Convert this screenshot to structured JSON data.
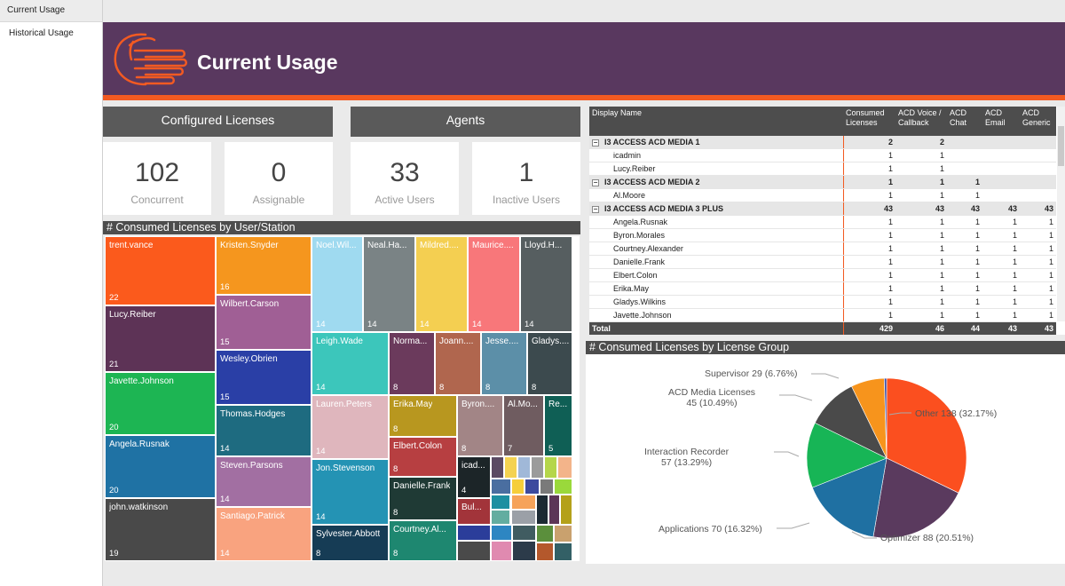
{
  "nav": {
    "items": [
      {
        "label": "Current Usage"
      },
      {
        "label": "Historical Usage"
      }
    ]
  },
  "header": {
    "title": "Current Usage"
  },
  "cards": {
    "configured_title": "Configured Licenses",
    "agents_title": "Agents",
    "kpis": [
      {
        "value": "102",
        "label": "Concurrent"
      },
      {
        "value": "0",
        "label": "Assignable"
      },
      {
        "value": "33",
        "label": "Active Users"
      },
      {
        "value": "1",
        "label": "Inactive Users"
      }
    ]
  },
  "treemap": {
    "title": "# Consumed Licenses by User/Station",
    "cells": [
      {
        "name": "trent.vance",
        "count": "22",
        "color": "#fb5a1c"
      },
      {
        "name": "Lucy.Reiber",
        "count": "21",
        "color": "#5d3356"
      },
      {
        "name": "Javette.Johnson",
        "count": "20",
        "color": "#1db553"
      },
      {
        "name": "Angela.Rusnak",
        "count": "20",
        "color": "#1f72a4"
      },
      {
        "name": "john.watkinson",
        "count": "19",
        "color": "#494949"
      },
      {
        "name": "Kristen.Snyder",
        "count": "16",
        "color": "#f5961e"
      },
      {
        "name": "Wilbert.Carson",
        "count": "15",
        "color": "#a05f95"
      },
      {
        "name": "Wesley.Obrien",
        "count": "15",
        "color": "#2a3fa6"
      },
      {
        "name": "Thomas.Hodges",
        "count": "14",
        "color": "#1e6b80"
      },
      {
        "name": "Steven.Parsons",
        "count": "14",
        "color": "#a26fa2"
      },
      {
        "name": "Santiago.Patrick",
        "count": "14",
        "color": "#f9a37f"
      },
      {
        "name": "Noel.Wil...",
        "count": "14",
        "color": "#9fdaf0"
      },
      {
        "name": "Neal.Ha...",
        "count": "14",
        "color": "#7a8385"
      },
      {
        "name": "Mildred....",
        "count": "14",
        "color": "#f4cf51"
      },
      {
        "name": "Maurice....",
        "count": "14",
        "color": "#f8777a"
      },
      {
        "name": "Lloyd.H...",
        "count": "14",
        "color": "#565e60"
      },
      {
        "name": "Leigh.Wade",
        "count": "14",
        "color": "#3cc6bb"
      },
      {
        "name": "Lauren.Peters",
        "count": "14",
        "color": "#dfb6bd"
      },
      {
        "name": "Jon.Stevenson",
        "count": "14",
        "color": "#2493b4"
      },
      {
        "name": "Sylvester.Abbott",
        "count": "8",
        "color": "#163c55"
      },
      {
        "name": "Norma...",
        "count": "8",
        "color": "#6b3a5c"
      },
      {
        "name": "Joann....",
        "count": "8",
        "color": "#b0664e"
      },
      {
        "name": "Jesse....",
        "count": "8",
        "color": "#5c8fa8"
      },
      {
        "name": "Gladys....",
        "count": "8",
        "color": "#3c4a4e"
      },
      {
        "name": "Erika.May",
        "count": "8",
        "color": "#b8971f"
      },
      {
        "name": "Byron....",
        "count": "8",
        "color": "#a28586"
      },
      {
        "name": "Al.Mo...",
        "count": "7",
        "color": "#6f5c60"
      },
      {
        "name": "Re...",
        "count": "5",
        "color": "#0f5f55"
      },
      {
        "name": "Elbert.Colon",
        "count": "8",
        "color": "#b73f41"
      },
      {
        "name": "Danielle.Frank",
        "count": "8",
        "color": "#1f3a35"
      },
      {
        "name": "Courtney.Al...",
        "count": "8",
        "color": "#1e8770"
      },
      {
        "name": "icad...",
        "count": "4",
        "color": "#1c2528"
      },
      {
        "name": "Bul...",
        "count": "",
        "color": "#a2343a"
      }
    ]
  },
  "table": {
    "columns": [
      "Display Name",
      "Consumed Licenses",
      "ACD Voice / Callback",
      "ACD Chat",
      "ACD Email",
      "ACD Generic"
    ],
    "rows": [
      {
        "type": "group",
        "name": "I3 ACCESS ACD MEDIA 1",
        "consumed": "2",
        "voice": "2",
        "chat": "",
        "email": "",
        "generic": ""
      },
      {
        "type": "item",
        "name": "icadmin",
        "consumed": "1",
        "voice": "1",
        "chat": "",
        "email": "",
        "generic": ""
      },
      {
        "type": "item",
        "name": "Lucy.Reiber",
        "consumed": "1",
        "voice": "1",
        "chat": "",
        "email": "",
        "generic": ""
      },
      {
        "type": "group",
        "name": "I3 ACCESS ACD MEDIA 2",
        "consumed": "1",
        "voice": "1",
        "chat": "1",
        "email": "",
        "generic": ""
      },
      {
        "type": "item",
        "name": "Al.Moore",
        "consumed": "1",
        "voice": "1",
        "chat": "1",
        "email": "",
        "generic": ""
      },
      {
        "type": "group",
        "name": "I3 ACCESS ACD MEDIA 3 PLUS",
        "consumed": "43",
        "voice": "43",
        "chat": "43",
        "email": "43",
        "generic": "43"
      },
      {
        "type": "item",
        "name": "Angela.Rusnak",
        "consumed": "1",
        "voice": "1",
        "chat": "1",
        "email": "1",
        "generic": "1"
      },
      {
        "type": "item",
        "name": "Byron.Morales",
        "consumed": "1",
        "voice": "1",
        "chat": "1",
        "email": "1",
        "generic": "1"
      },
      {
        "type": "item",
        "name": "Courtney.Alexander",
        "consumed": "1",
        "voice": "1",
        "chat": "1",
        "email": "1",
        "generic": "1"
      },
      {
        "type": "item",
        "name": "Danielle.Frank",
        "consumed": "1",
        "voice": "1",
        "chat": "1",
        "email": "1",
        "generic": "1"
      },
      {
        "type": "item",
        "name": "Elbert.Colon",
        "consumed": "1",
        "voice": "1",
        "chat": "1",
        "email": "1",
        "generic": "1"
      },
      {
        "type": "item",
        "name": "Erika.May",
        "consumed": "1",
        "voice": "1",
        "chat": "1",
        "email": "1",
        "generic": "1"
      },
      {
        "type": "item",
        "name": "Gladys.Wilkins",
        "consumed": "1",
        "voice": "1",
        "chat": "1",
        "email": "1",
        "generic": "1"
      },
      {
        "type": "item",
        "name": "Javette.Johnson",
        "consumed": "1",
        "voice": "1",
        "chat": "1",
        "email": "1",
        "generic": "1"
      }
    ],
    "total": {
      "name": "Total",
      "consumed": "429",
      "voice": "46",
      "chat": "44",
      "email": "43",
      "generic": "43"
    },
    "group_toggle": "−"
  },
  "pie": {
    "title": "# Consumed Licenses by License Group",
    "slices": [
      {
        "label": "Other 138 (32.17%)",
        "value": 138,
        "color": "#fb4f1f"
      },
      {
        "label": "Optimizer 88 (20.51%)",
        "value": 88,
        "color": "#5a3a5e"
      },
      {
        "label": "Applications 70 (16.32%)",
        "value": 70,
        "color": "#1f70a2"
      },
      {
        "label": "Interaction Recorder 57 (13.29%)",
        "value": 57,
        "color": "#17b556"
      },
      {
        "label": "ACD Media Licenses 45 (10.49%)",
        "value": 45,
        "color": "#4a4a4a"
      },
      {
        "label": "Supervisor 29 (6.76%)",
        "value": 29,
        "color": "#f7941c"
      },
      {
        "label": "",
        "value": 2,
        "color": "#3a4fa8"
      }
    ],
    "label_lines": [
      {
        "name": "Supervisor 29 (6.76%)"
      },
      {
        "name": "ACD Media Licenses",
        "detail": "45 (10.49%)"
      },
      {
        "name": "Interaction Recorder",
        "detail": "57 (13.29%)"
      },
      {
        "name": "Applications 70 (16.32%)"
      },
      {
        "name": "Optimizer 88 (20.51%)"
      },
      {
        "name": "Other 138 (32.17%)"
      }
    ]
  }
}
